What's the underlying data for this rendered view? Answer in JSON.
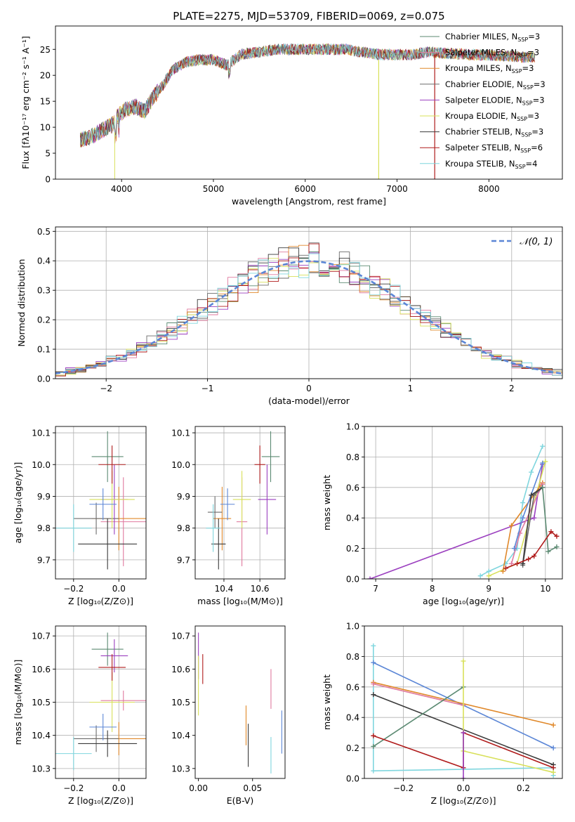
{
  "figure": {
    "title": "PLATE=2275, MJD=53709, FIBERID=0069, z=0.075"
  },
  "models": [
    {
      "label": "Chabrier MILES, N",
      "n": "3",
      "color": "#5b8a72"
    },
    {
      "label": "Salpeter MILES, N",
      "n": "3",
      "color": "#e07a9f"
    },
    {
      "label": "Kroupa MILES, N",
      "n": "3",
      "color": "#e0882a"
    },
    {
      "label": "Chabrier ELODIE, N",
      "n": "3",
      "color": "#6b6b6b"
    },
    {
      "label": "Salpeter ELODIE, N",
      "n": "3",
      "color": "#9b3fbf"
    },
    {
      "label": "Kroupa ELODIE, N",
      "n": "3",
      "color": "#d8e05a"
    },
    {
      "label": "Chabrier STELIB, N",
      "n": "3",
      "color": "#3a3a3a"
    },
    {
      "label": "Salpeter STELIB, N",
      "n": "6",
      "color": "#b01c1c"
    },
    {
      "label": "Kroupa STELIB, N",
      "n": "4",
      "color": "#7fd6de"
    }
  ],
  "chart_data": [
    {
      "id": "spectrum",
      "type": "line",
      "xlabel": "wavelength [Angstrom, rest frame]",
      "ylabel": "Flux [fλ10⁻¹⁷ erg cm⁻² s⁻¹ A⁻¹]",
      "xlim": [
        3280,
        8800
      ],
      "ylim": [
        0,
        29.5
      ],
      "xticks": [
        4000,
        5000,
        6000,
        7000,
        8000
      ],
      "yticks": [
        0,
        5,
        10,
        15,
        20,
        25
      ],
      "grid": false,
      "legend": "top-right",
      "continuum": [
        [
          3550,
          7.5
        ],
        [
          3700,
          8.5
        ],
        [
          3800,
          9.5
        ],
        [
          3900,
          10.5
        ],
        [
          3950,
          12
        ],
        [
          4050,
          13.5
        ],
        [
          4150,
          14
        ],
        [
          4250,
          13
        ],
        [
          4350,
          16
        ],
        [
          4450,
          18
        ],
        [
          4550,
          21
        ],
        [
          4700,
          22.5
        ],
        [
          4850,
          23
        ],
        [
          5000,
          23
        ],
        [
          5150,
          22
        ],
        [
          5300,
          24
        ],
        [
          5500,
          24.5
        ],
        [
          5700,
          25
        ],
        [
          5900,
          25
        ],
        [
          6050,
          25
        ],
        [
          6250,
          25
        ],
        [
          6450,
          25
        ],
        [
          6600,
          24.5
        ],
        [
          6800,
          24
        ],
        [
          7000,
          24
        ],
        [
          7200,
          24
        ],
        [
          7300,
          24.5
        ],
        [
          7500,
          24.3
        ],
        [
          7800,
          24
        ],
        [
          8100,
          23.8
        ],
        [
          8400,
          23.5
        ],
        [
          8500,
          23.5
        ]
      ]
    },
    {
      "id": "residuals",
      "type": "line",
      "title": "",
      "xlabel": "(data-model)/error",
      "ylabel": "Normed distribution",
      "xlim": [
        -2.5,
        2.5
      ],
      "ylim": [
        0,
        0.515
      ],
      "xticks": [
        -2,
        -1,
        0,
        1,
        2
      ],
      "yticks": [
        0.0,
        0.1,
        0.2,
        0.3,
        0.4,
        0.5
      ],
      "grid": true,
      "legend": "top-right",
      "gaussian_label": "𝒩(0, 1)",
      "gaussian": {
        "mean": 0,
        "sigma": 1,
        "color": "#5b86d6"
      },
      "bin_width": 0.1
    },
    {
      "id": "age-vs-Z",
      "type": "scatter",
      "errorbars": true,
      "xlabel": "Z [log₁₀(Z/Z⊙)]",
      "ylabel": "age  [log₁₀(age/yr)]",
      "xlim": [
        -0.28,
        0.12
      ],
      "ylim": [
        9.64,
        10.12
      ],
      "xticks": [
        -0.2,
        0.0
      ],
      "xticklabels": [
        "−0.2",
        "0.0"
      ],
      "yticks": [
        9.7,
        9.8,
        9.9,
        10.0,
        10.1
      ],
      "grid": true,
      "points": [
        {
          "m": 0,
          "x": -0.05,
          "xe": 0.07,
          "y": 10.025,
          "ye": 0.08
        },
        {
          "m": 1,
          "x": 0.02,
          "xe": 0.1,
          "y": 9.82,
          "ye": 0.14
        },
        {
          "m": 2,
          "x": 0.0,
          "xe": 0.12,
          "y": 9.83,
          "ye": 0.1
        },
        {
          "m": 3,
          "x": -0.1,
          "xe": 0.1,
          "y": 9.83,
          "ye": 0.05
        },
        {
          "m": 4,
          "x": -0.02,
          "xe": 0.06,
          "y": 9.89,
          "ye": 0.11
        },
        {
          "m": 5,
          "x": -0.03,
          "xe": 0.1,
          "y": 9.89,
          "ye": 0.09
        },
        {
          "m": 6,
          "x": -0.05,
          "xe": 0.13,
          "y": 9.75,
          "ye": 0.08
        },
        {
          "m": 7,
          "x": -0.03,
          "xe": 0.06,
          "y": 10.0,
          "ye": 0.06
        },
        {
          "m": 8,
          "x": -0.2,
          "xe": 0.08,
          "y": 9.8,
          "ye": 0.075
        },
        {
          "m": "blue",
          "x": -0.07,
          "xe": 0.06,
          "y": 9.875,
          "ye": 0.05,
          "color": "#5b86d6"
        }
      ]
    },
    {
      "id": "age-vs-mass",
      "type": "scatter",
      "errorbars": true,
      "xlabel": "mass [log₁₀(M/M⊙)]",
      "ylabel": "",
      "xlim": [
        10.24,
        10.74
      ],
      "ylim": [
        9.64,
        10.12
      ],
      "xticks": [
        10.4,
        10.6
      ],
      "yticks": [
        9.7,
        9.8,
        9.9,
        10.0,
        10.1
      ],
      "grid": true,
      "points": [
        {
          "m": 0,
          "x": 10.66,
          "xe": 0.05,
          "y": 10.025,
          "ye": 0.08
        },
        {
          "m": 1,
          "x": 10.5,
          "xe": 0.03,
          "y": 9.82,
          "ye": 0.14
        },
        {
          "m": 2,
          "x": 10.39,
          "xe": 0.05,
          "y": 9.83,
          "ye": 0.1
        },
        {
          "m": 3,
          "x": 10.35,
          "xe": 0.04,
          "y": 9.85,
          "ye": 0.05
        },
        {
          "m": 4,
          "x": 10.64,
          "xe": 0.05,
          "y": 9.89,
          "ye": 0.11
        },
        {
          "m": 5,
          "x": 10.5,
          "xe": 0.05,
          "y": 9.89,
          "ye": 0.09
        },
        {
          "m": 6,
          "x": 10.37,
          "xe": 0.04,
          "y": 9.75,
          "ye": 0.08
        },
        {
          "m": 7,
          "x": 10.6,
          "xe": 0.03,
          "y": 10.0,
          "ye": 0.06
        },
        {
          "m": 8,
          "x": 10.34,
          "xe": 0.04,
          "y": 9.8,
          "ye": 0.075
        },
        {
          "m": "blue",
          "x": 10.42,
          "xe": 0.04,
          "y": 9.875,
          "ye": 0.05,
          "color": "#5b86d6"
        }
      ]
    },
    {
      "id": "weight-vs-age",
      "type": "line",
      "xlabel": "age  [log₁₀(age/yr)]",
      "ylabel": "mass weight",
      "xlim": [
        6.8,
        10.3
      ],
      "ylim": [
        0,
        1.0
      ],
      "xticks": [
        7,
        8,
        9,
        10
      ],
      "yticks": [
        0.0,
        0.2,
        0.4,
        0.6,
        0.8,
        1.0
      ],
      "grid": true,
      "series": [
        {
          "color": "#7fd6de",
          "x": [
            8.85,
            9.0,
            9.3,
            9.5,
            9.6,
            9.75,
            9.95
          ],
          "y": [
            0.02,
            0.05,
            0.1,
            0.2,
            0.5,
            0.7,
            0.87
          ]
        },
        {
          "color": "#9b3fbf",
          "x": [
            6.9,
            9.8,
            9.95
          ],
          "y": [
            0.0,
            0.4,
            0.75
          ]
        },
        {
          "color": "#d8e05a",
          "x": [
            9.0,
            9.5,
            10.0
          ],
          "y": [
            0.02,
            0.1,
            0.77
          ]
        },
        {
          "color": "#e0882a",
          "x": [
            9.25,
            9.4,
            9.95
          ],
          "y": [
            0.05,
            0.35,
            0.63
          ]
        },
        {
          "color": "#e07a9f",
          "x": [
            9.4,
            9.55,
            9.95
          ],
          "y": [
            0.1,
            0.3,
            0.62
          ]
        },
        {
          "color": "#5b86d6",
          "x": [
            9.45,
            9.6,
            9.95
          ],
          "y": [
            0.2,
            0.4,
            0.76
          ]
        },
        {
          "color": "#6b6b6b",
          "x": [
            9.6,
            9.8,
            9.95
          ],
          "y": [
            0.09,
            0.55,
            0.6
          ]
        },
        {
          "color": "#3a3a3a",
          "x": [
            9.6,
            9.75,
            9.95
          ],
          "y": [
            0.1,
            0.55,
            0.6
          ]
        },
        {
          "color": "#5b8a72",
          "x": [
            9.95,
            10.05,
            10.2
          ],
          "y": [
            0.6,
            0.18,
            0.21
          ]
        },
        {
          "color": "#b01c1c",
          "x": [
            9.3,
            9.5,
            9.7,
            9.8,
            10.1,
            10.2
          ],
          "y": [
            0.07,
            0.1,
            0.13,
            0.15,
            0.31,
            0.28
          ]
        }
      ]
    },
    {
      "id": "mass-vs-Z",
      "type": "scatter",
      "errorbars": true,
      "xlabel": "Z [log₁₀(Z/Z⊙)]",
      "ylabel": "mass [log₁₀(M/M⊙)]",
      "xlim": [
        -0.28,
        0.12
      ],
      "ylim": [
        10.27,
        10.73
      ],
      "xticks": [
        -0.2,
        0.0
      ],
      "xticklabels": [
        "−0.2",
        "0.0"
      ],
      "yticks": [
        10.3,
        10.4,
        10.5,
        10.6,
        10.7
      ],
      "grid": true,
      "points": [
        {
          "m": 0,
          "x": -0.05,
          "xe": 0.07,
          "y": 10.66,
          "ye": 0.05
        },
        {
          "m": 1,
          "x": 0.02,
          "xe": 0.1,
          "y": 10.505,
          "ye": 0.03
        },
        {
          "m": 2,
          "x": 0.0,
          "xe": 0.12,
          "y": 10.39,
          "ye": 0.05
        },
        {
          "m": 3,
          "x": -0.1,
          "xe": 0.1,
          "y": 10.39,
          "ye": 0.04
        },
        {
          "m": 4,
          "x": -0.02,
          "xe": 0.06,
          "y": 10.64,
          "ye": 0.05
        },
        {
          "m": 5,
          "x": -0.03,
          "xe": 0.1,
          "y": 10.5,
          "ye": 0.09
        },
        {
          "m": 6,
          "x": -0.05,
          "xe": 0.13,
          "y": 10.375,
          "ye": 0.04
        },
        {
          "m": 7,
          "x": -0.03,
          "xe": 0.06,
          "y": 10.605,
          "ye": 0.04
        },
        {
          "m": 8,
          "x": -0.2,
          "xe": 0.08,
          "y": 10.345,
          "ye": 0.05
        },
        {
          "m": "blue",
          "x": -0.07,
          "xe": 0.06,
          "y": 10.425,
          "ye": 0.04,
          "color": "#5b86d6"
        }
      ]
    },
    {
      "id": "mass-vs-EBV",
      "type": "scatter",
      "errorbars": true,
      "xlabel": "E(B-V)",
      "ylabel": "",
      "xlim": [
        -0.003,
        0.08
      ],
      "ylim": [
        10.27,
        10.73
      ],
      "xticks": [
        0.0,
        0.05
      ],
      "xticklabels": [
        "0.00",
        "0.05"
      ],
      "yticks": [
        10.3,
        10.4,
        10.5,
        10.6,
        10.7
      ],
      "grid": false,
      "points": [
        {
          "m": 4,
          "x": 0.0,
          "xe": 0,
          "y": 10.64,
          "ye": 0.07
        },
        {
          "m": 5,
          "x": 0.0,
          "xe": 0,
          "y": 10.55,
          "ye": 0.09
        },
        {
          "m": 7,
          "x": 0.004,
          "xe": 0,
          "y": 10.6,
          "ye": 0.045
        },
        {
          "m": 2,
          "x": 0.044,
          "xe": 0,
          "y": 10.43,
          "ye": 0.06
        },
        {
          "m": 6,
          "x": 0.046,
          "xe": 0,
          "y": 10.37,
          "ye": 0.065
        },
        {
          "m": 1,
          "x": 0.067,
          "xe": 0,
          "y": 10.54,
          "ye": 0.06
        },
        {
          "m": 8,
          "x": 0.067,
          "xe": 0,
          "y": 10.34,
          "ye": 0.055
        },
        {
          "m": "blue",
          "x": 0.077,
          "xe": 0,
          "y": 10.41,
          "ye": 0.065,
          "color": "#5b86d6"
        }
      ]
    },
    {
      "id": "weight-vs-Z",
      "type": "line",
      "xlabel": "Z [log₁₀(Z/Z⊙)]",
      "ylabel": "mass weight",
      "xlim": [
        -0.33,
        0.33
      ],
      "ylim": [
        0,
        1.0
      ],
      "xticks": [
        -0.2,
        0.0,
        0.2
      ],
      "xticklabels": [
        "−0.2",
        "0.0",
        "0.2"
      ],
      "yticks": [
        0.0,
        0.2,
        0.4,
        0.6,
        0.8,
        1.0
      ],
      "grid": true,
      "series": [
        {
          "color": "#7fd6de",
          "x": [
            -0.3,
            -0.3,
            0.3,
            0.3
          ],
          "y": [
            0.87,
            0.05,
            0.07,
            0.02
          ]
        },
        {
          "color": "#5b86d6",
          "x": [
            -0.3,
            0.3
          ],
          "y": [
            0.76,
            0.2
          ]
        },
        {
          "color": "#e0882a",
          "x": [
            -0.3,
            0.3
          ],
          "y": [
            0.63,
            0.35
          ]
        },
        {
          "color": "#e07a9f",
          "x": [
            -0.3,
            0.0
          ],
          "y": [
            0.62,
            0.48
          ]
        },
        {
          "color": "#3a3a3a",
          "x": [
            -0.3,
            0.3
          ],
          "y": [
            0.55,
            0.09
          ]
        },
        {
          "color": "#5b8a72",
          "x": [
            -0.3,
            0.0
          ],
          "y": [
            0.21,
            0.6
          ]
        },
        {
          "color": "#b01c1c",
          "x": [
            -0.3,
            0.0,
            0.0,
            0.3
          ],
          "y": [
            0.28,
            0.07,
            0.3,
            0.07
          ]
        },
        {
          "color": "#d8e05a",
          "x": [
            0.0,
            0.0,
            0.3
          ],
          "y": [
            0.77,
            0.18,
            0.04
          ]
        },
        {
          "color": "#9b3fbf",
          "x": [
            0.0,
            0.0
          ],
          "y": [
            0.3,
            0.0
          ]
        }
      ]
    }
  ]
}
